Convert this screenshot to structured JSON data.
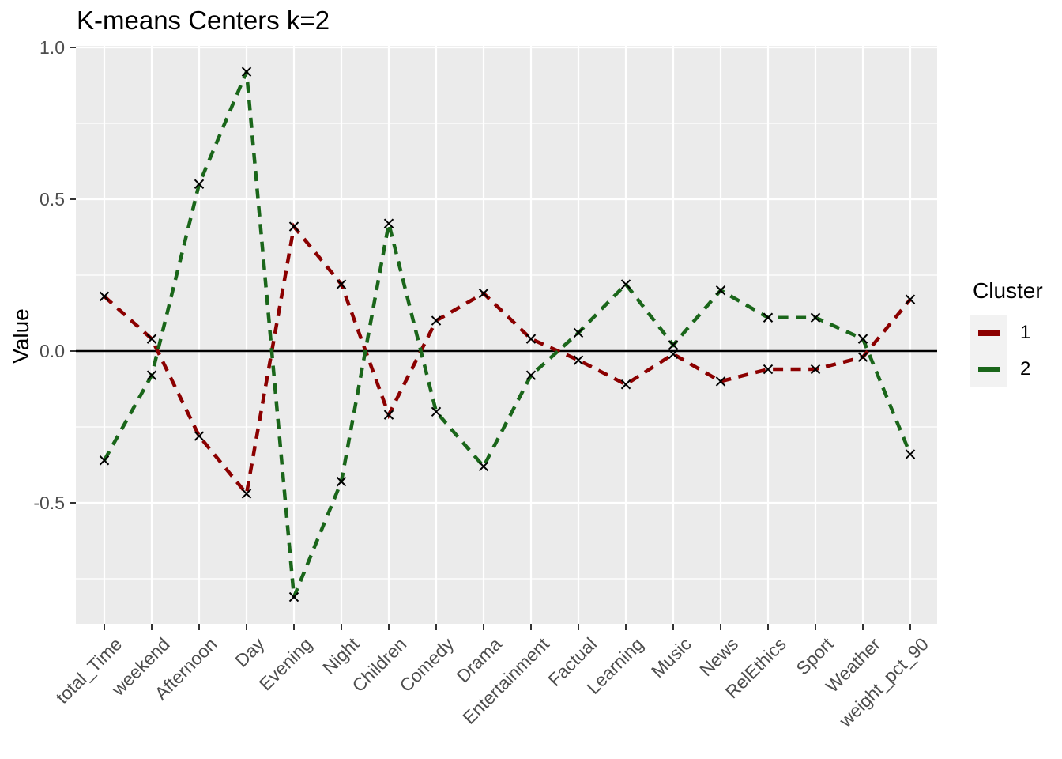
{
  "title": "K-means Centers k=2",
  "y_axis": {
    "label": "Value",
    "ticks": [
      "1.0",
      "0.5",
      "0.0",
      "-0.5"
    ],
    "tick_values": [
      1.0,
      0.5,
      0.0,
      -0.5
    ],
    "minor_tick_values": [
      0.75,
      0.25,
      -0.25,
      -0.75
    ]
  },
  "x_axis": {
    "label": ""
  },
  "legend": {
    "title": "Cluster",
    "entries": [
      {
        "label": "1",
        "color": "#8B0000"
      },
      {
        "label": "2",
        "color": "#1A661A"
      }
    ]
  },
  "colors": {
    "panel_bg": "#EBEBEB",
    "grid": "#FFFFFF",
    "axis_text": "#4D4D4D",
    "tick_mark": "#333333",
    "zero_line": "#000000",
    "marker": "#000000",
    "legend_key_bg": "#F2F2F2",
    "cluster1": "#8B0000",
    "cluster2": "#1A661A"
  },
  "chart_data": {
    "type": "line",
    "title": "K-means Centers k=2",
    "xlabel": "",
    "ylabel": "Value",
    "ylim": [
      -0.9,
      1.0
    ],
    "grid": true,
    "legend_position": "right",
    "legend_title": "Cluster",
    "hline": 0,
    "line_style": "dashed",
    "marker": "x",
    "categories": [
      "total_Time",
      "weekend",
      "Afternoon",
      "Day",
      "Evening",
      "Night",
      "Children",
      "Comedy",
      "Drama",
      "Entertainment",
      "Factual",
      "Learning",
      "Music",
      "News",
      "RelEthics",
      "Sport",
      "Weather",
      "weight_pct_90"
    ],
    "series": [
      {
        "name": "1",
        "color": "#8B0000",
        "values": [
          0.18,
          0.04,
          -0.28,
          -0.47,
          0.41,
          0.22,
          -0.21,
          0.1,
          0.19,
          0.04,
          -0.03,
          -0.11,
          -0.01,
          -0.1,
          -0.06,
          -0.06,
          -0.02,
          0.17
        ]
      },
      {
        "name": "2",
        "color": "#1A661A",
        "values": [
          -0.36,
          -0.08,
          0.55,
          0.92,
          -0.81,
          -0.43,
          0.42,
          -0.2,
          -0.38,
          -0.08,
          0.06,
          0.22,
          0.02,
          0.2,
          0.11,
          0.11,
          0.04,
          -0.34
        ]
      }
    ]
  }
}
